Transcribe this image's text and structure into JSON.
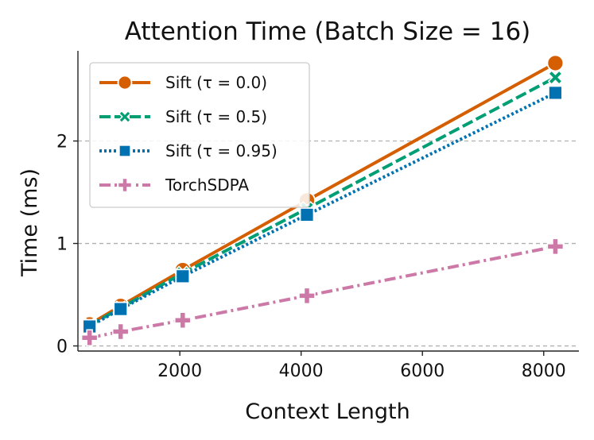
{
  "chart_data": {
    "type": "line",
    "title": "Attention Time (Batch Size = 16)",
    "xlabel": "Context Length",
    "ylabel": "Time (ms)",
    "xlim": [
      320,
      8580
    ],
    "ylim": [
      -0.05,
      2.88
    ],
    "xticks": [
      2000,
      4000,
      6000,
      8000
    ],
    "yticks": [
      0,
      1,
      2
    ],
    "x": [
      512,
      1024,
      2048,
      4096,
      8192
    ],
    "legend_position": "top-left",
    "grid": "y-dashed",
    "series": [
      {
        "name": "Sift (τ = 0.0)",
        "values": [
          0.21,
          0.39,
          0.74,
          1.42,
          2.76
        ],
        "color": "#D55E00",
        "marker": "circle",
        "dash": "solid"
      },
      {
        "name": "Sift (τ = 0.5)",
        "values": [
          0.2,
          0.37,
          0.71,
          1.34,
          2.62
        ],
        "color": "#009E73",
        "marker": "x",
        "dash": "dashed"
      },
      {
        "name": "Sift (τ = 0.95)",
        "values": [
          0.19,
          0.36,
          0.68,
          1.28,
          2.47
        ],
        "color": "#0072B2",
        "marker": "square",
        "dash": "dotted"
      },
      {
        "name": "TorchSDPA",
        "values": [
          0.08,
          0.14,
          0.25,
          0.49,
          0.97
        ],
        "color": "#CC79A7",
        "marker": "plus",
        "dash": "dashdot"
      }
    ]
  }
}
